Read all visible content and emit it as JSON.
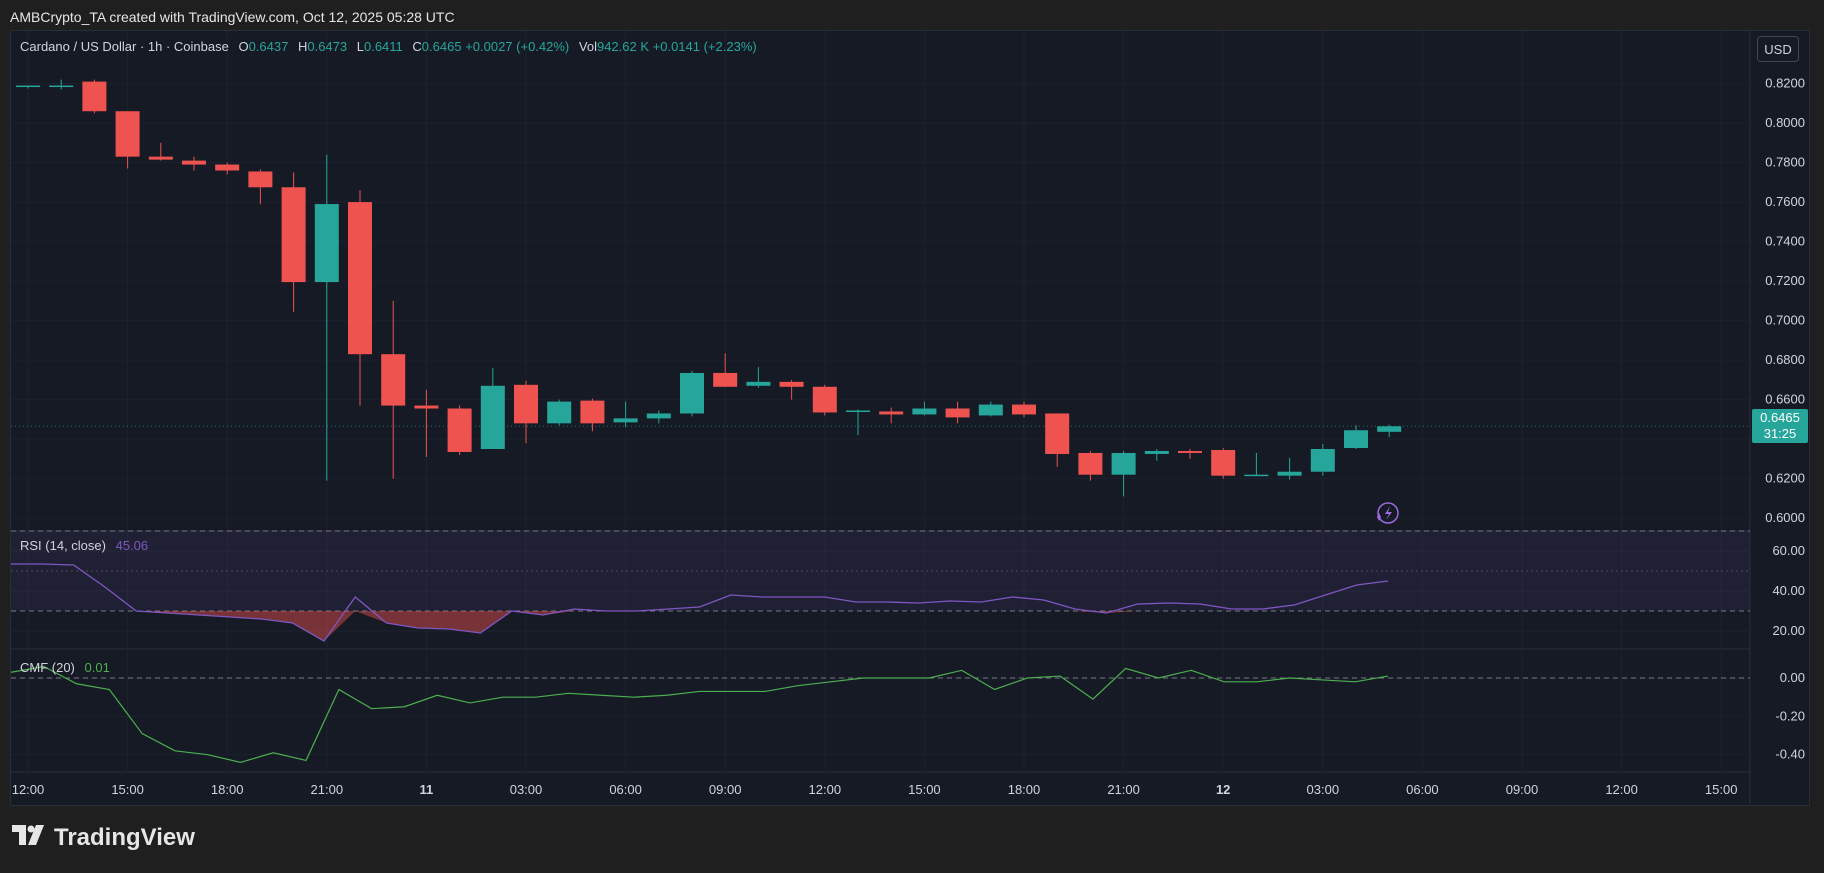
{
  "header": {
    "caption": "AMBCrypto_TA created with TradingView.com, Oct 12, 2025 05:28 UTC"
  },
  "legend": {
    "symbol": "Cardano / US Dollar · 1h · Coinbase",
    "o_label": "O",
    "o_value": "0.6437",
    "h_label": "H",
    "h_value": "0.6473",
    "l_label": "L",
    "l_value": "0.6411",
    "c_label": "C",
    "c_value": "0.6465",
    "change": "+0.0027 (+0.42%)",
    "vol_label": "Vol",
    "vol_value": "942.62 K",
    "vol_change": "+0.0141 (+2.23%)"
  },
  "currency_button": "USD",
  "last_price": {
    "price": "0.6465",
    "countdown": "31:25"
  },
  "rsi": {
    "label": "RSI (14, close)",
    "value": "45.06"
  },
  "cmf": {
    "label": "CMF (20)",
    "value": "0.01"
  },
  "brand": {
    "icon": "tradingview-logo-icon",
    "name": "TradingView"
  },
  "colors": {
    "up": "#26a69a",
    "down": "#ef5350",
    "rsi": "#7e57c2",
    "cmf": "#4caf50",
    "background": "#161a25"
  },
  "chart_data": [
    {
      "type": "candlestick",
      "title": "Cardano / US Dollar · 1h · Coinbase",
      "ylim": [
        0.594,
        0.8294
      ],
      "y_ticks": [
        "0.8200",
        "0.8000",
        "0.7800",
        "0.7600",
        "0.7400",
        "0.7200",
        "0.7000",
        "0.6800",
        "0.6600",
        "0.6400",
        "0.6200",
        "0.6000"
      ],
      "x_ticks": [
        "12:00",
        "15:00",
        "18:00",
        "21:00",
        "11",
        "03:00",
        "06:00",
        "09:00",
        "12:00",
        "15:00",
        "18:00",
        "21:00",
        "12",
        "03:00",
        "06:00",
        "09:00",
        "12:00",
        "15:00"
      ],
      "grid": true,
      "candles": [
        {
          "o": 0.8185,
          "h": 0.819,
          "l": 0.8175,
          "c": 0.819
        },
        {
          "o": 0.819,
          "h": 0.822,
          "l": 0.817,
          "c": 0.819
        },
        {
          "o": 0.821,
          "h": 0.822,
          "l": 0.805,
          "c": 0.806
        },
        {
          "o": 0.806,
          "h": 0.806,
          "l": 0.777,
          "c": 0.783
        },
        {
          "o": 0.783,
          "h": 0.79,
          "l": 0.781,
          "c": 0.7815
        },
        {
          "o": 0.781,
          "h": 0.783,
          "l": 0.776,
          "c": 0.779
        },
        {
          "o": 0.779,
          "h": 0.78,
          "l": 0.774,
          "c": 0.776
        },
        {
          "o": 0.7755,
          "h": 0.7765,
          "l": 0.759,
          "c": 0.7675
        },
        {
          "o": 0.7675,
          "h": 0.775,
          "l": 0.7045,
          "c": 0.7195
        },
        {
          "o": 0.7195,
          "h": 0.784,
          "l": 0.619,
          "c": 0.759
        },
        {
          "o": 0.76,
          "h": 0.766,
          "l": 0.657,
          "c": 0.683
        },
        {
          "o": 0.683,
          "h": 0.71,
          "l": 0.62,
          "c": 0.657
        },
        {
          "o": 0.657,
          "h": 0.665,
          "l": 0.631,
          "c": 0.6555
        },
        {
          "o": 0.6555,
          "h": 0.657,
          "l": 0.632,
          "c": 0.6335
        },
        {
          "o": 0.635,
          "h": 0.676,
          "l": 0.635,
          "c": 0.667
        },
        {
          "o": 0.6675,
          "h": 0.6695,
          "l": 0.638,
          "c": 0.648
        },
        {
          "o": 0.648,
          "h": 0.66,
          "l": 0.647,
          "c": 0.659
        },
        {
          "o": 0.6595,
          "h": 0.6605,
          "l": 0.644,
          "c": 0.648
        },
        {
          "o": 0.6485,
          "h": 0.659,
          "l": 0.646,
          "c": 0.6505
        },
        {
          "o": 0.6505,
          "h": 0.6545,
          "l": 0.648,
          "c": 0.653
        },
        {
          "o": 0.653,
          "h": 0.6745,
          "l": 0.6515,
          "c": 0.6735
        },
        {
          "o": 0.6735,
          "h": 0.6835,
          "l": 0.6665,
          "c": 0.6665
        },
        {
          "o": 0.667,
          "h": 0.6765,
          "l": 0.666,
          "c": 0.669
        },
        {
          "o": 0.669,
          "h": 0.67,
          "l": 0.66,
          "c": 0.6665
        },
        {
          "o": 0.6665,
          "h": 0.6675,
          "l": 0.652,
          "c": 0.6535
        },
        {
          "o": 0.654,
          "h": 0.655,
          "l": 0.642,
          "c": 0.6545
        },
        {
          "o": 0.654,
          "h": 0.656,
          "l": 0.648,
          "c": 0.6525
        },
        {
          "o": 0.6525,
          "h": 0.659,
          "l": 0.652,
          "c": 0.6555
        },
        {
          "o": 0.6555,
          "h": 0.659,
          "l": 0.648,
          "c": 0.651
        },
        {
          "o": 0.652,
          "h": 0.659,
          "l": 0.6515,
          "c": 0.6575
        },
        {
          "o": 0.6575,
          "h": 0.659,
          "l": 0.651,
          "c": 0.6525
        },
        {
          "o": 0.653,
          "h": 0.653,
          "l": 0.626,
          "c": 0.6325
        },
        {
          "o": 0.633,
          "h": 0.634,
          "l": 0.619,
          "c": 0.622
        },
        {
          "o": 0.622,
          "h": 0.634,
          "l": 0.611,
          "c": 0.633
        },
        {
          "o": 0.6325,
          "h": 0.635,
          "l": 0.629,
          "c": 0.634
        },
        {
          "o": 0.634,
          "h": 0.635,
          "l": 0.63,
          "c": 0.633
        },
        {
          "o": 0.6345,
          "h": 0.6355,
          "l": 0.62,
          "c": 0.6215
        },
        {
          "o": 0.622,
          "h": 0.633,
          "l": 0.6215,
          "c": 0.622
        },
        {
          "o": 0.6215,
          "h": 0.6305,
          "l": 0.6195,
          "c": 0.6235
        },
        {
          "o": 0.6235,
          "h": 0.6375,
          "l": 0.6215,
          "c": 0.635
        },
        {
          "o": 0.6355,
          "h": 0.647,
          "l": 0.635,
          "c": 0.6445
        },
        {
          "o": 0.6437,
          "h": 0.6473,
          "l": 0.6411,
          "c": 0.6465
        }
      ]
    },
    {
      "type": "line",
      "title": "RSI (14, close)",
      "ylim": [
        13,
        73
      ],
      "y_ticks": [
        "60.00",
        "40.00",
        "20.00"
      ],
      "bands": {
        "upper": 70,
        "middle": 50,
        "lower": 30
      },
      "series": [
        {
          "name": "RSI (14, close)",
          "values": [
            53.5,
            53.5,
            53,
            42,
            30,
            29,
            28,
            27,
            26,
            24,
            15,
            37,
            24,
            21.5,
            21,
            19,
            30,
            28,
            31,
            30,
            30,
            31,
            32,
            38,
            37,
            37,
            37,
            34.5,
            34.5,
            34,
            35,
            34.5,
            37,
            35.5,
            31,
            29,
            33.5,
            34,
            33.5,
            31,
            31,
            33,
            38,
            43,
            45
          ]
        }
      ]
    },
    {
      "type": "line",
      "title": "CMF (20)",
      "ylim": [
        -0.48,
        0.12
      ],
      "y_ticks": [
        "0.00",
        "-0.20",
        "-0.40"
      ],
      "series": [
        {
          "name": "CMF (20)",
          "values": [
            0.03,
            0.06,
            -0.03,
            -0.06,
            -0.29,
            -0.38,
            -0.4,
            -0.44,
            -0.39,
            -0.43,
            -0.06,
            -0.16,
            -0.15,
            -0.09,
            -0.13,
            -0.1,
            -0.1,
            -0.08,
            -0.09,
            -0.1,
            -0.09,
            -0.07,
            -0.07,
            -0.07,
            -0.04,
            -0.02,
            0.0,
            0.0,
            0.0,
            0.04,
            -0.06,
            0.0,
            0.01,
            -0.11,
            0.05,
            0.0,
            0.04,
            -0.02,
            -0.02,
            0.0,
            -0.01,
            -0.02,
            0.01
          ]
        }
      ]
    }
  ]
}
